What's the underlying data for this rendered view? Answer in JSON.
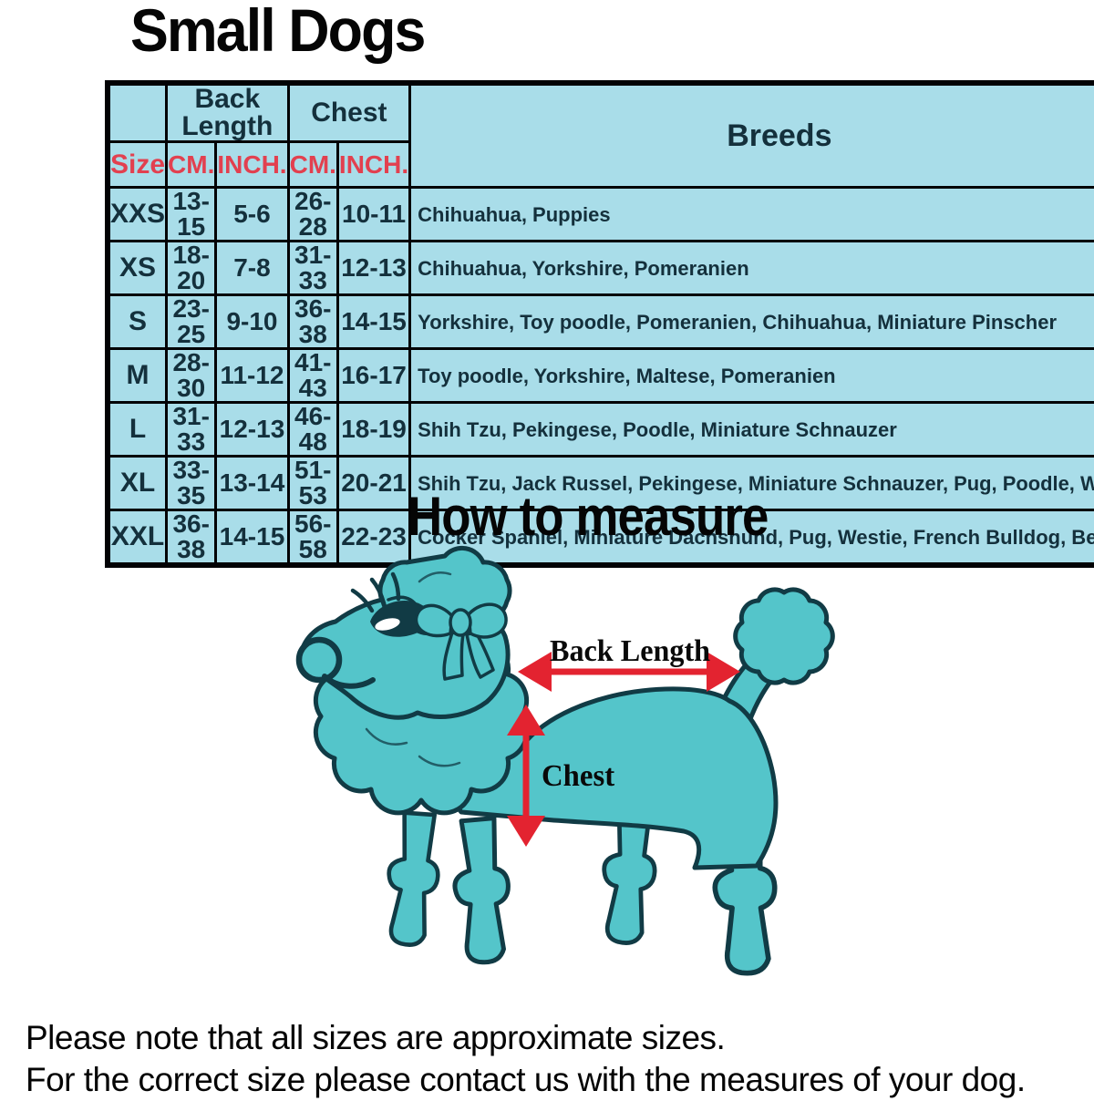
{
  "page": {
    "title": "Small Dogs",
    "measure_title": "How to measure",
    "footer_line1": "Please note that all sizes are approximate sizes.",
    "footer_line2": "For the correct size please contact us with the measures of your dog."
  },
  "colors": {
    "table_bg": "#a9dde9",
    "navy_text": "#14303c",
    "red_text": "#e2404f",
    "dog_teal": "#54c5ca",
    "dog_outline": "#113b45",
    "arrow_red": "#e32330"
  },
  "table": {
    "group_headers": {
      "back_length": "Back Length",
      "chest": "Chest",
      "breeds": "Breeds"
    },
    "sub_headers": {
      "size": "Size",
      "back_cm": "CM.",
      "back_inch": "INCH.",
      "chest_cm": "CM.",
      "chest_inch": "INCH."
    },
    "rows": [
      {
        "size": "XXS",
        "back_cm": "13-15",
        "back_inch": "5-6",
        "chest_cm": "26-28",
        "chest_inch": "10-11",
        "breeds": "Chihuahua, Puppies"
      },
      {
        "size": "XS",
        "back_cm": "18-20",
        "back_inch": "7-8",
        "chest_cm": "31-33",
        "chest_inch": "12-13",
        "breeds": "Chihuahua, Yorkshire, Pomeranien"
      },
      {
        "size": "S",
        "back_cm": "23-25",
        "back_inch": "9-10",
        "chest_cm": "36-38",
        "chest_inch": "14-15",
        "breeds": "Yorkshire, Toy poodle, Pomeranien, Chihuahua, Miniature Pinscher"
      },
      {
        "size": "M",
        "back_cm": "28-30",
        "back_inch": "11-12",
        "chest_cm": "41-43",
        "chest_inch": "16-17",
        "breeds": "Toy poodle, Yorkshire, Maltese, Pomeranien"
      },
      {
        "size": "L",
        "back_cm": "31-33",
        "back_inch": "12-13",
        "chest_cm": "46-48",
        "chest_inch": "18-19",
        "breeds": "Shih Tzu, Pekingese, Poodle, Miniature Schnauzer"
      },
      {
        "size": "XL",
        "back_cm": "33-35",
        "back_inch": "13-14",
        "chest_cm": "51-53",
        "chest_inch": "20-21",
        "breeds": "Shih Tzu, Jack Russel, Pekingese, Miniature Schnauzer, Pug, Poodle, Westie"
      },
      {
        "size": "XXL",
        "back_cm": "36-38",
        "back_inch": "14-15",
        "chest_cm": "56-58",
        "chest_inch": "22-23",
        "breeds": "Cocker Spaniel, Miniature Dachshund, Pug, Westie, French Bulldog, Beagle"
      }
    ]
  },
  "diagram": {
    "back_length_label": "Back Length",
    "chest_label": "Chest"
  }
}
